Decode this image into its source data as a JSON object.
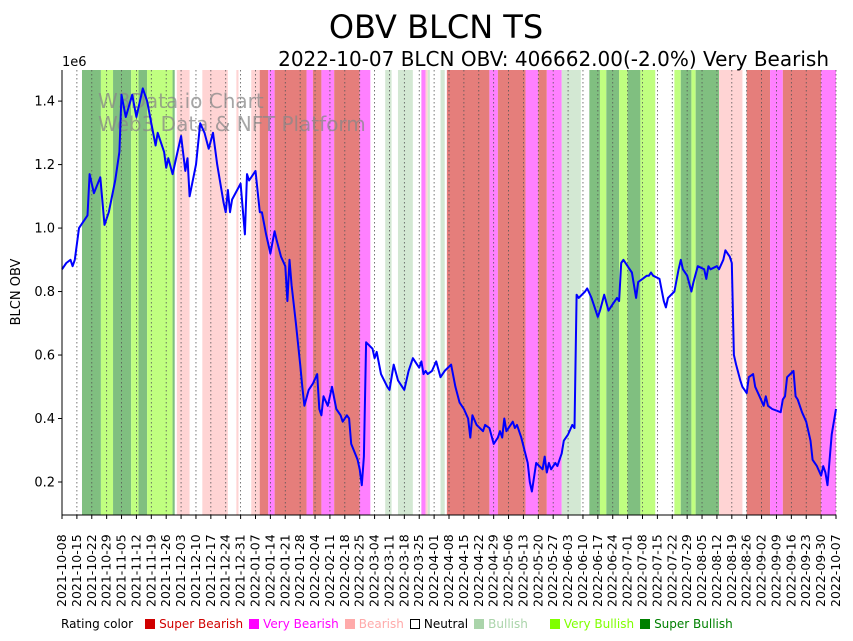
{
  "chart_data": {
    "type": "line",
    "title": "OBV BLCN TS",
    "subtitle": "2022-10-07 BLCN OBV: 406662.00(-2.0%) Very Bearish",
    "ylabel": "BLCN OBV",
    "xlabel": "",
    "y_multiplier_label": "1e6",
    "ylim": [
      0.096,
      1.498
    ],
    "yticks": [
      0.2,
      0.4,
      0.6,
      0.8,
      1.0,
      1.2,
      1.4
    ],
    "ytick_labels": [
      "0.2",
      "0.4",
      "0.6",
      "0.8",
      "1.0",
      "1.2",
      "1.4"
    ],
    "x_start": "2021-10-08",
    "x_days": 364,
    "grid": "vertical dotted at x ticks",
    "xtick_labels": [
      "2021-10-08",
      "2021-10-15",
      "2021-10-22",
      "2021-10-29",
      "2021-11-05",
      "2021-11-12",
      "2021-11-19",
      "2021-11-26",
      "2021-12-03",
      "2021-12-10",
      "2021-12-17",
      "2021-12-24",
      "2021-12-31",
      "2022-01-07",
      "2022-01-14",
      "2022-01-21",
      "2022-01-28",
      "2022-02-04",
      "2022-02-11",
      "2022-02-18",
      "2022-02-25",
      "2022-03-04",
      "2022-03-11",
      "2022-03-18",
      "2022-03-25",
      "2022-04-01",
      "2022-04-08",
      "2022-04-15",
      "2022-04-22",
      "2022-04-29",
      "2022-05-06",
      "2022-05-13",
      "2022-05-20",
      "2022-05-27",
      "2022-06-03",
      "2022-06-10",
      "2022-06-17",
      "2022-06-24",
      "2022-07-01",
      "2022-07-08",
      "2022-07-15",
      "2022-07-22",
      "2022-07-29",
      "2022-08-05",
      "2022-08-12",
      "2022-08-19",
      "2022-08-26",
      "2022-09-02",
      "2022-09-09",
      "2022-09-16",
      "2022-09-23",
      "2022-09-30",
      "2022-10-07"
    ],
    "series": [
      {
        "name": "BLCN OBV (1e6)",
        "color": "#0000ff",
        "points": [
          [
            0,
            0.87
          ],
          [
            2,
            0.89
          ],
          [
            4,
            0.9
          ],
          [
            5,
            0.88
          ],
          [
            6,
            0.9
          ],
          [
            8,
            1.0
          ],
          [
            10,
            1.02
          ],
          [
            12,
            1.04
          ],
          [
            13,
            1.17
          ],
          [
            15,
            1.11
          ],
          [
            18,
            1.16
          ],
          [
            20,
            1.01
          ],
          [
            22,
            1.05
          ],
          [
            25,
            1.15
          ],
          [
            27,
            1.24
          ],
          [
            28,
            1.42
          ],
          [
            30,
            1.35
          ],
          [
            33,
            1.42
          ],
          [
            35,
            1.35
          ],
          [
            38,
            1.44
          ],
          [
            40,
            1.4
          ],
          [
            42,
            1.33
          ],
          [
            44,
            1.26
          ],
          [
            45,
            1.3
          ],
          [
            48,
            1.24
          ],
          [
            49,
            1.19
          ],
          [
            50,
            1.22
          ],
          [
            52,
            1.17
          ],
          [
            54,
            1.23
          ],
          [
            56,
            1.29
          ],
          [
            58,
            1.18
          ],
          [
            59,
            1.22
          ],
          [
            60,
            1.1
          ],
          [
            63,
            1.2
          ],
          [
            65,
            1.33
          ],
          [
            67,
            1.3
          ],
          [
            69,
            1.25
          ],
          [
            71,
            1.3
          ],
          [
            73,
            1.2
          ],
          [
            76,
            1.08
          ],
          [
            77,
            1.05
          ],
          [
            78,
            1.12
          ],
          [
            79,
            1.05
          ],
          [
            80,
            1.09
          ],
          [
            84,
            1.14
          ],
          [
            86,
            0.98
          ],
          [
            87,
            1.17
          ],
          [
            88,
            1.15
          ],
          [
            91,
            1.18
          ],
          [
            93,
            1.05
          ],
          [
            94,
            1.05
          ],
          [
            96,
            0.98
          ],
          [
            98,
            0.92
          ],
          [
            100,
            0.99
          ],
          [
            101,
            0.96
          ],
          [
            103,
            0.91
          ],
          [
            105,
            0.88
          ],
          [
            106,
            0.77
          ],
          [
            107,
            0.9
          ],
          [
            108,
            0.82
          ],
          [
            110,
            0.7
          ],
          [
            112,
            0.57
          ],
          [
            113,
            0.5
          ],
          [
            114,
            0.44
          ],
          [
            116,
            0.49
          ],
          [
            118,
            0.51
          ],
          [
            120,
            0.54
          ],
          [
            121,
            0.43
          ],
          [
            122,
            0.41
          ],
          [
            123,
            0.47
          ],
          [
            125,
            0.44
          ],
          [
            127,
            0.5
          ],
          [
            129,
            0.43
          ],
          [
            131,
            0.41
          ],
          [
            132,
            0.39
          ],
          [
            134,
            0.41
          ],
          [
            135,
            0.4
          ],
          [
            136,
            0.32
          ],
          [
            139,
            0.27
          ],
          [
            140,
            0.24
          ],
          [
            141,
            0.19
          ],
          [
            142,
            0.28
          ],
          [
            143,
            0.64
          ],
          [
            146,
            0.62
          ],
          [
            147,
            0.59
          ],
          [
            148,
            0.61
          ],
          [
            150,
            0.54
          ],
          [
            153,
            0.5
          ],
          [
            154,
            0.49
          ],
          [
            156,
            0.57
          ],
          [
            158,
            0.52
          ],
          [
            160,
            0.5
          ],
          [
            161,
            0.49
          ],
          [
            163,
            0.55
          ],
          [
            165,
            0.59
          ],
          [
            167,
            0.57
          ],
          [
            168,
            0.56
          ],
          [
            169,
            0.58
          ],
          [
            170,
            0.54
          ],
          [
            171,
            0.55
          ],
          [
            172,
            0.54
          ],
          [
            174,
            0.55
          ],
          [
            176,
            0.58
          ],
          [
            178,
            0.53
          ],
          [
            180,
            0.55
          ],
          [
            183,
            0.57
          ],
          [
            185,
            0.5
          ],
          [
            187,
            0.45
          ],
          [
            189,
            0.43
          ],
          [
            191,
            0.4
          ],
          [
            192,
            0.34
          ],
          [
            193,
            0.41
          ],
          [
            195,
            0.38
          ],
          [
            198,
            0.36
          ],
          [
            199,
            0.38
          ],
          [
            201,
            0.37
          ],
          [
            203,
            0.32
          ],
          [
            205,
            0.34
          ],
          [
            206,
            0.36
          ],
          [
            207,
            0.34
          ],
          [
            208,
            0.4
          ],
          [
            209,
            0.36
          ],
          [
            212,
            0.39
          ],
          [
            213,
            0.37
          ],
          [
            214,
            0.38
          ],
          [
            216,
            0.34
          ],
          [
            219,
            0.26
          ],
          [
            220,
            0.2
          ],
          [
            221,
            0.17
          ],
          [
            223,
            0.26
          ],
          [
            226,
            0.24
          ],
          [
            227,
            0.28
          ],
          [
            228,
            0.23
          ],
          [
            229,
            0.26
          ],
          [
            230,
            0.24
          ],
          [
            232,
            0.26
          ],
          [
            233,
            0.25
          ],
          [
            235,
            0.29
          ],
          [
            236,
            0.33
          ],
          [
            238,
            0.35
          ],
          [
            240,
            0.38
          ],
          [
            241,
            0.37
          ],
          [
            242,
            0.79
          ],
          [
            243,
            0.78
          ],
          [
            246,
            0.8
          ],
          [
            247,
            0.81
          ],
          [
            249,
            0.78
          ],
          [
            250,
            0.76
          ],
          [
            252,
            0.72
          ],
          [
            253,
            0.74
          ],
          [
            255,
            0.79
          ],
          [
            257,
            0.74
          ],
          [
            259,
            0.76
          ],
          [
            261,
            0.78
          ],
          [
            262,
            0.77
          ],
          [
            263,
            0.89
          ],
          [
            264,
            0.9
          ],
          [
            267,
            0.87
          ],
          [
            268,
            0.86
          ],
          [
            270,
            0.78
          ],
          [
            271,
            0.83
          ],
          [
            273,
            0.84
          ],
          [
            275,
            0.85
          ],
          [
            276,
            0.85
          ],
          [
            277,
            0.86
          ],
          [
            278,
            0.85
          ],
          [
            281,
            0.84
          ],
          [
            283,
            0.77
          ],
          [
            284,
            0.75
          ],
          [
            285,
            0.78
          ],
          [
            288,
            0.8
          ],
          [
            290,
            0.87
          ],
          [
            291,
            0.9
          ],
          [
            292,
            0.87
          ],
          [
            294,
            0.85
          ],
          [
            296,
            0.8
          ],
          [
            297,
            0.83
          ],
          [
            299,
            0.88
          ],
          [
            302,
            0.87
          ],
          [
            303,
            0.84
          ],
          [
            304,
            0.88
          ],
          [
            305,
            0.87
          ],
          [
            308,
            0.88
          ],
          [
            309,
            0.87
          ],
          [
            311,
            0.9
          ],
          [
            312,
            0.93
          ],
          [
            314,
            0.91
          ],
          [
            315,
            0.89
          ],
          [
            316,
            0.6
          ],
          [
            317,
            0.57
          ],
          [
            319,
            0.52
          ],
          [
            320,
            0.5
          ],
          [
            322,
            0.48
          ],
          [
            323,
            0.53
          ],
          [
            325,
            0.54
          ],
          [
            326,
            0.5
          ],
          [
            328,
            0.47
          ],
          [
            330,
            0.44
          ],
          [
            331,
            0.47
          ],
          [
            332,
            0.44
          ],
          [
            334,
            0.43
          ],
          [
            338,
            0.42
          ],
          [
            339,
            0.46
          ],
          [
            340,
            0.47
          ],
          [
            341,
            0.53
          ],
          [
            344,
            0.55
          ],
          [
            345,
            0.47
          ],
          [
            346,
            0.46
          ],
          [
            348,
            0.42
          ],
          [
            350,
            0.39
          ],
          [
            352,
            0.33
          ],
          [
            353,
            0.27
          ],
          [
            355,
            0.25
          ],
          [
            357,
            0.22
          ],
          [
            358,
            0.25
          ],
          [
            359,
            0.23
          ],
          [
            360,
            0.19
          ],
          [
            361,
            0.27
          ],
          [
            362,
            0.35
          ],
          [
            364,
            0.43
          ]
        ]
      }
    ],
    "rating_bands": [
      [
        9.4,
        18.3,
        "super_bullish"
      ],
      [
        18.3,
        24,
        "very_bullish"
      ],
      [
        24,
        32.5,
        "super_bullish"
      ],
      [
        32.5,
        36,
        "very_bullish"
      ],
      [
        36,
        40,
        "super_bullish"
      ],
      [
        40,
        52,
        "very_bullish"
      ],
      [
        52,
        53,
        "super_bullish"
      ],
      [
        54,
        60,
        "bearish"
      ],
      [
        66,
        78,
        "bearish"
      ],
      [
        82,
        83,
        "bearish"
      ],
      [
        89,
        93,
        "bearish"
      ],
      [
        93,
        97,
        "super_bearish"
      ],
      [
        97,
        100,
        "very_bearish"
      ],
      [
        100,
        115,
        "super_bearish"
      ],
      [
        115,
        118,
        "very_bearish"
      ],
      [
        118,
        122,
        "super_bearish"
      ],
      [
        122,
        128,
        "very_bearish"
      ],
      [
        128,
        140,
        "super_bearish"
      ],
      [
        140,
        145,
        "very_bearish"
      ],
      [
        152,
        155,
        "bullish"
      ],
      [
        158,
        165,
        "bullish"
      ],
      [
        169,
        171,
        "very_bearish"
      ],
      [
        171,
        172,
        "bearish"
      ],
      [
        172,
        173,
        "bullish"
      ],
      [
        178,
        180,
        "bullish"
      ],
      [
        181,
        201,
        "super_bearish"
      ],
      [
        201,
        205,
        "very_bearish"
      ],
      [
        205,
        218,
        "super_bearish"
      ],
      [
        218,
        224,
        "very_bearish"
      ],
      [
        224,
        228,
        "super_bearish"
      ],
      [
        228,
        235,
        "very_bearish"
      ],
      [
        235,
        244,
        "bullish"
      ],
      [
        248,
        253,
        "super_bullish"
      ],
      [
        253,
        256,
        "very_bullish"
      ],
      [
        256,
        262,
        "super_bullish"
      ],
      [
        262,
        266,
        "very_bullish"
      ],
      [
        266,
        272,
        "super_bullish"
      ],
      [
        272,
        279,
        "very_bullish"
      ],
      [
        288,
        291,
        "very_bullish"
      ],
      [
        291,
        296,
        "super_bullish"
      ],
      [
        296,
        298,
        "very_bullish"
      ],
      [
        298,
        309,
        "super_bullish"
      ],
      [
        309,
        320,
        "bearish"
      ],
      [
        322,
        333,
        "super_bearish"
      ],
      [
        333,
        339,
        "very_bearish"
      ],
      [
        339,
        357,
        "super_bearish"
      ],
      [
        357,
        364,
        "very_bearish"
      ]
    ],
    "band_colors": {
      "super_bearish": "#e57e7b",
      "very_bearish": "#ff80ff",
      "bearish": "#ffd4d4",
      "neutral": "#ffffff",
      "bullish": "#d3e8d3",
      "very_bullish": "#c0ff80",
      "super_bullish": "#80bf80"
    },
    "watermark": [
      "W3Data.io Chart",
      "Web3 Data & NFT Platform"
    ],
    "legend": {
      "title": "Rating color",
      "placement": "bottom",
      "items": [
        {
          "label": "Super Bearish",
          "color": "#d00000"
        },
        {
          "label": "Very Bearish",
          "color": "#ff00ff"
        },
        {
          "label": "Bearish",
          "color": "#ffaaaa"
        },
        {
          "label": "Neutral",
          "color": "#ffffff"
        },
        {
          "label": "Bullish",
          "color": "#aad4aa"
        },
        {
          "label": "Very Bullish",
          "color": "#80ff00"
        },
        {
          "label": "Super Bullish",
          "color": "#008000"
        }
      ]
    }
  }
}
